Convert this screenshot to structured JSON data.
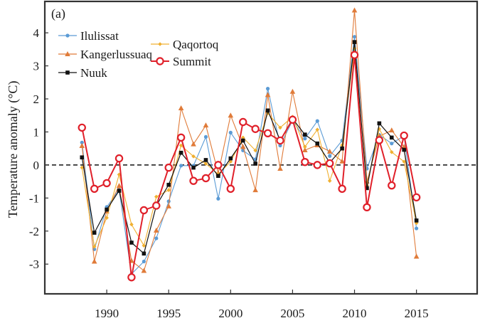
{
  "chart_data": {
    "type": "line",
    "panel_label": "(a)",
    "title": "",
    "xlabel": "",
    "ylabel": "Temperature anomaly (°C)",
    "xlim": [
      1985.0,
      2019.9
    ],
    "ylim": [
      -3.9,
      4.95
    ],
    "x_ticks": [
      1990,
      1995,
      2000,
      2005,
      2010,
      2015
    ],
    "x_tick_labels": [
      "1990",
      "1995",
      "2000",
      "2005",
      "2010",
      "2015"
    ],
    "y_ticks": [
      -3,
      -2,
      -1,
      0,
      1,
      2,
      3,
      4
    ],
    "y_tick_labels": [
      "-3",
      "-2",
      "-1",
      "0",
      "1",
      "2",
      "3",
      "4"
    ],
    "reference_line": {
      "y": 0,
      "style": "dashed"
    },
    "grid": false,
    "legend_position": "top-left",
    "x": [
      1988,
      1989,
      1990,
      1991,
      1992,
      1993,
      1994,
      1995,
      1996,
      1997,
      1998,
      1999,
      2000,
      2001,
      2002,
      2003,
      2004,
      2005,
      2006,
      2007,
      2008,
      2009,
      2010,
      2011,
      2012,
      2013,
      2014,
      2015
    ],
    "series": [
      {
        "name": "Ilulissat",
        "color": "#5b9bd5",
        "marker": "circle",
        "values": [
          0.68,
          -2.55,
          -1.27,
          -0.75,
          -3.3,
          -2.92,
          -2.22,
          -1.1,
          -0.02,
          -0.02,
          0.85,
          -1.02,
          0.98,
          0.44,
          0.17,
          2.31,
          0.59,
          1.35,
          0.8,
          1.33,
          0.27,
          0.74,
          3.88,
          -0.11,
          0.91,
          0.65,
          0.88,
          -1.92
        ]
      },
      {
        "name": "Kangerlussuaq",
        "color": "#e07b39",
        "marker": "triangle",
        "values": [
          0.58,
          -2.92,
          -1.4,
          -0.63,
          -2.9,
          -3.2,
          -1.98,
          -1.25,
          1.72,
          0.63,
          1.2,
          -0.25,
          1.5,
          0.55,
          -0.76,
          2.12,
          -0.11,
          2.22,
          0.45,
          0.6,
          0.41,
          0.11,
          4.68,
          -0.5,
          0.87,
          1.05,
          0.55,
          -2.77
        ]
      },
      {
        "name": "Nuuk",
        "color": "#111111",
        "marker": "square",
        "values": [
          0.23,
          -2.05,
          -1.35,
          -0.78,
          -2.35,
          -2.68,
          -1.23,
          -0.6,
          0.37,
          -0.08,
          0.15,
          -0.33,
          0.2,
          0.74,
          0.04,
          1.65,
          0.74,
          1.4,
          0.92,
          0.65,
          0.07,
          0.5,
          3.72,
          -0.7,
          1.26,
          0.83,
          0.46,
          -1.68
        ]
      },
      {
        "name": "Qaqortoq",
        "color": "#f0b030",
        "marker": "diamond",
        "values": [
          -0.08,
          -2.47,
          -1.6,
          -0.29,
          -1.8,
          -2.44,
          -0.96,
          -0.76,
          0.59,
          0.26,
          0.04,
          -0.28,
          0.1,
          0.83,
          0.44,
          1.57,
          1.13,
          1.46,
          0.55,
          1.07,
          -0.48,
          0.6,
          3.53,
          -0.62,
          1.09,
          0.39,
          0.1,
          -1.76
        ]
      },
      {
        "name": "Summit",
        "color": "#e0202a",
        "marker": "open-circle",
        "values": [
          1.13,
          -0.72,
          -0.55,
          0.2,
          -3.4,
          -1.37,
          -1.23,
          -0.08,
          0.83,
          -0.48,
          -0.4,
          0,
          -0.72,
          1.3,
          1.09,
          0.96,
          0.74,
          1.37,
          0.09,
          0,
          0.05,
          -0.72,
          3.33,
          -1.28,
          0.75,
          -0.62,
          0.89,
          -0.98
        ]
      }
    ]
  }
}
